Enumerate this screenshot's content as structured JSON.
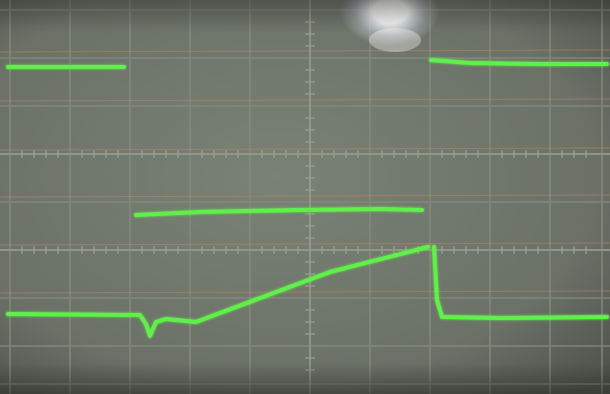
{
  "scene": {
    "subject": "oscilloscope-screen-photo",
    "trace_color": "#5ef04a",
    "screen_color": "#6f766a",
    "grid_color": "#7f8579",
    "reflection_color": "#ffffff",
    "grid": {
      "divisions_x": 10,
      "divisions_y": 8
    }
  }
}
